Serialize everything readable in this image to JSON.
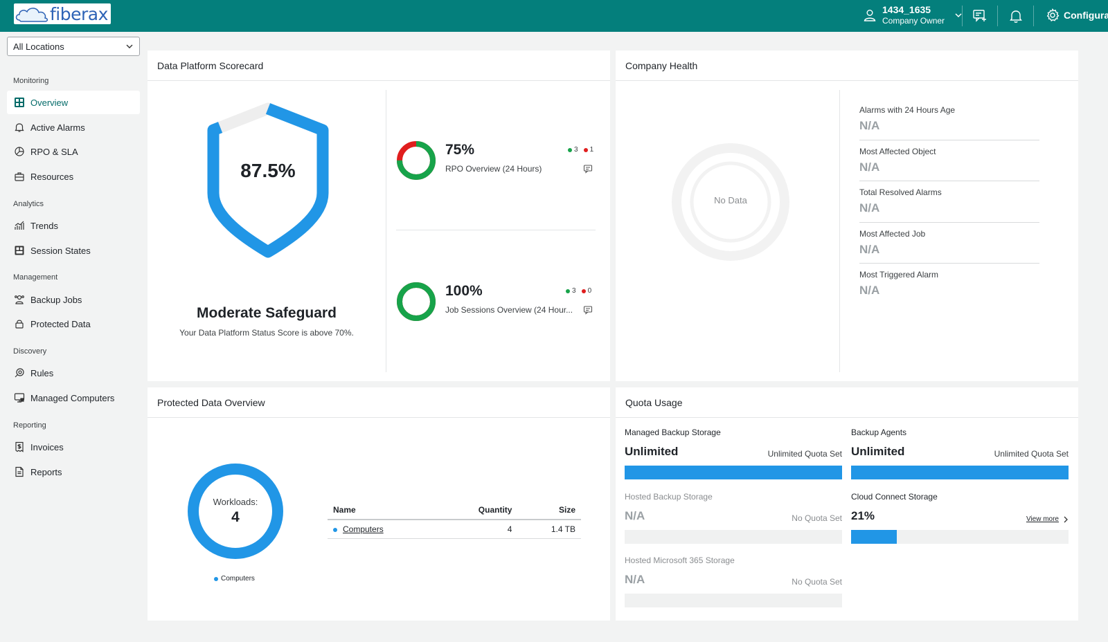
{
  "brand": {
    "logo_text": "fiberax"
  },
  "header": {
    "user_name": "1434_1635",
    "user_role": "Company Owner",
    "config_label": "Configuratio"
  },
  "sidebar": {
    "location_select": "All Locations",
    "sections": {
      "monitoring": "Monitoring",
      "analytics": "Analytics",
      "management": "Management",
      "discovery": "Discovery",
      "reporting": "Reporting"
    },
    "items": {
      "overview": "Overview",
      "active_alarms": "Active Alarms",
      "rpo_sla": "RPO & SLA",
      "resources": "Resources",
      "trends": "Trends",
      "session_states": "Session States",
      "backup_jobs": "Backup Jobs",
      "protected_data": "Protected Data",
      "rules": "Rules",
      "managed_computers": "Managed Computers",
      "invoices": "Invoices",
      "reports": "Reports"
    }
  },
  "scorecard": {
    "title": "Data Platform Scorecard",
    "score_fraction": 0.875,
    "score_label": "87.5%",
    "status": "Moderate Safeguard",
    "status_sub": "Your Data Platform Status Score is above 70%.",
    "rpo": {
      "pct_label": "75%",
      "fraction": 0.75,
      "label": "RPO Overview (24 Hours)",
      "green": "3",
      "red": "1"
    },
    "jobs": {
      "pct_label": "100%",
      "fraction": 1.0,
      "label": "Job Sessions Overview (24 Hour...",
      "green": "3",
      "red": "0"
    }
  },
  "health": {
    "title": "Company Health",
    "no_data": "No Data",
    "items": [
      {
        "label": "Alarms with 24 Hours Age",
        "value": "N/A"
      },
      {
        "label": "Most Affected Object",
        "value": "N/A"
      },
      {
        "label": "Total Resolved Alarms",
        "value": "N/A"
      },
      {
        "label": "Most Affected Job",
        "value": "N/A"
      },
      {
        "label": "Most Triggered Alarm",
        "value": "N/A"
      }
    ]
  },
  "protected": {
    "title": "Protected Data Overview",
    "workloads_label": "Workloads:",
    "workloads_value": "4",
    "legend": "Computers",
    "columns": {
      "name": "Name",
      "quantity": "Quantity",
      "size": "Size"
    },
    "rows": [
      {
        "name": "Computers",
        "quantity": "4",
        "size": "1.4 TB"
      }
    ]
  },
  "quota": {
    "title": "Quota Usage",
    "managed_backup": {
      "name": "Managed Backup Storage",
      "value": "Unlimited",
      "note": "Unlimited Quota Set",
      "fill": 1.0
    },
    "backup_agents": {
      "name": "Backup Agents",
      "value": "Unlimited",
      "note": "Unlimited Quota Set",
      "fill": 1.0
    },
    "hosted_backup": {
      "name": "Hosted Backup Storage",
      "value": "N/A",
      "note": "No Quota Set",
      "fill": 0
    },
    "cloud_connect": {
      "name": "Cloud Connect Storage",
      "value": "21%",
      "link": "View more",
      "fill": 0.21
    },
    "hosted_m365": {
      "name": "Hosted Microsoft 365 Storage",
      "value": "N/A",
      "note": "No Quota Set",
      "fill": 0
    }
  },
  "colors": {
    "header": "#047f7c",
    "accent": "#2196e6",
    "green": "#17a34a",
    "red": "#e01e1e"
  }
}
